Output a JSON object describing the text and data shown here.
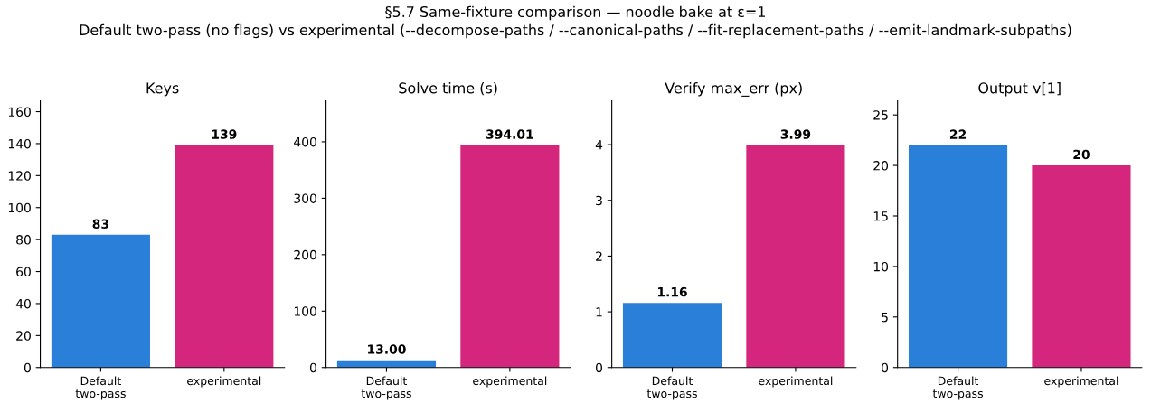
{
  "chart_data": [
    {
      "type": "bar",
      "title": "Keys",
      "annotations": [
        "§5.7 Same-fixture comparison — noodle bake at ε=1",
        "Default two-pass (no flags) vs experimental (--decompose-paths / --canonical-paths / --fit-replacement-paths / --emit-landmark-subpaths)"
      ],
      "categories": [
        "Default\ntwo-pass",
        "experimental"
      ],
      "values": [
        83,
        139
      ],
      "colors": [
        "#2a7fd8",
        "#d4267c"
      ],
      "value_labels": [
        "83",
        "139"
      ],
      "ylim": [
        0,
        166.8
      ],
      "yticks": [
        0,
        20,
        40,
        60,
        80,
        100,
        120,
        140,
        160
      ],
      "grid": false
    },
    {
      "type": "bar",
      "title": "Solve time (s)",
      "categories": [
        "Default\ntwo-pass",
        "experimental"
      ],
      "values": [
        13.0,
        394.01
      ],
      "colors": [
        "#2a7fd8",
        "#d4267c"
      ],
      "value_labels": [
        "13.00",
        "394.01"
      ],
      "ylim": [
        0,
        472.8
      ],
      "yticks": [
        0,
        100,
        200,
        300,
        400
      ],
      "grid": false
    },
    {
      "type": "bar",
      "title": "Verify max_err (px)",
      "categories": [
        "Default\ntwo-pass",
        "experimental"
      ],
      "values": [
        1.16,
        3.99
      ],
      "colors": [
        "#2a7fd8",
        "#d4267c"
      ],
      "value_labels": [
        "1.16",
        "3.99"
      ],
      "ylim": [
        0,
        4.788
      ],
      "yticks": [
        0,
        1,
        2,
        3,
        4
      ],
      "grid": false
    },
    {
      "type": "bar",
      "title": "Output v[1]",
      "categories": [
        "Default\ntwo-pass",
        "experimental"
      ],
      "values": [
        22,
        20
      ],
      "colors": [
        "#2a7fd8",
        "#d4267c"
      ],
      "value_labels": [
        "22",
        "20"
      ],
      "ylim": [
        0,
        26.4
      ],
      "yticks": [
        0,
        5,
        10,
        15,
        20,
        25
      ],
      "grid": false
    }
  ]
}
